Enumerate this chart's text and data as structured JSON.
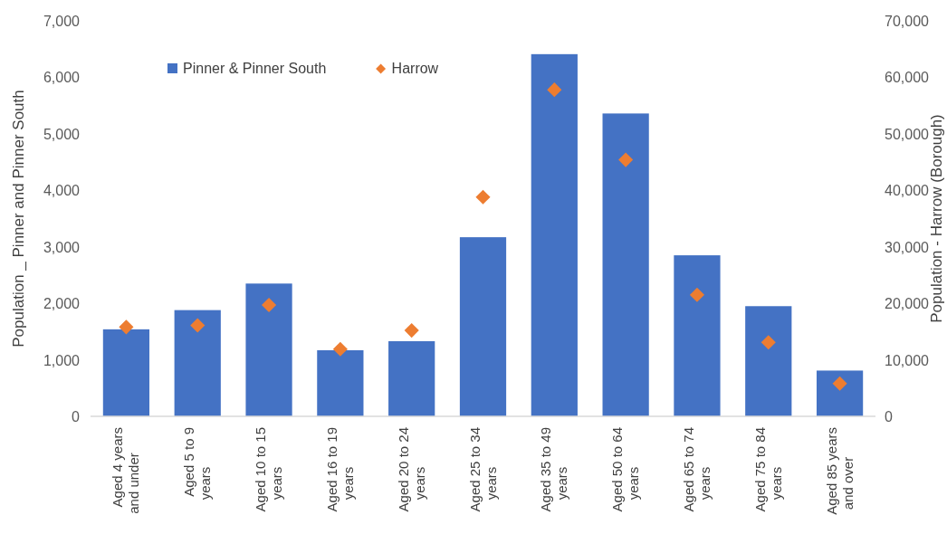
{
  "chart_data": {
    "type": "bar",
    "categories": [
      "Aged 4 years and under",
      "Aged 5 to 9 years",
      "Aged 10 to 15 years",
      "Aged 16 to 19 years",
      "Aged 20 to 24 years",
      "Aged 25 to 34 years",
      "Aged 35 to 49 years",
      "Aged 50 to 64 years",
      "Aged 65 to 74 years",
      "Aged 75 to 84 years",
      "Aged 85 years and over"
    ],
    "series": [
      {
        "name": "Pinner & Pinner South",
        "color": "#4472c4",
        "values": [
          1540,
          1880,
          2350,
          1170,
          1330,
          3170,
          6410,
          5360,
          2850,
          1950,
          810
        ]
      },
      {
        "name": "Harrow",
        "type": "scatter",
        "axis": "y2",
        "marker": "diamond",
        "color": "#ed7d31",
        "values": [
          15800,
          16100,
          19700,
          11900,
          15200,
          38800,
          57800,
          45400,
          21500,
          13100,
          5800
        ]
      }
    ],
    "ylabel": "Population _ Pinner and Pinner South",
    "y2label": "Population - Harrow (Borough)",
    "ylim": [
      0,
      7000
    ],
    "yticks": [
      {
        "value": 0,
        "label": "0"
      },
      {
        "value": 1000,
        "label": "1,000"
      },
      {
        "value": 2000,
        "label": "2,000"
      },
      {
        "value": 3000,
        "label": "3,000"
      },
      {
        "value": 4000,
        "label": "4,000"
      },
      {
        "value": 5000,
        "label": "5,000"
      },
      {
        "value": 6000,
        "label": "6,000"
      },
      {
        "value": 7000,
        "label": "7,000"
      }
    ],
    "y2lim": [
      0,
      70000
    ],
    "y2ticks": [
      {
        "value": 0,
        "label": "0"
      },
      {
        "value": 10000,
        "label": "10,000"
      },
      {
        "value": 20000,
        "label": "20,000"
      },
      {
        "value": 30000,
        "label": "30,000"
      },
      {
        "value": 40000,
        "label": "40,000"
      },
      {
        "value": 50000,
        "label": "50,000"
      },
      {
        "value": 60000,
        "label": "60,000"
      },
      {
        "value": 70000,
        "label": "70,000"
      }
    ],
    "legend": "top",
    "grid": false
  }
}
